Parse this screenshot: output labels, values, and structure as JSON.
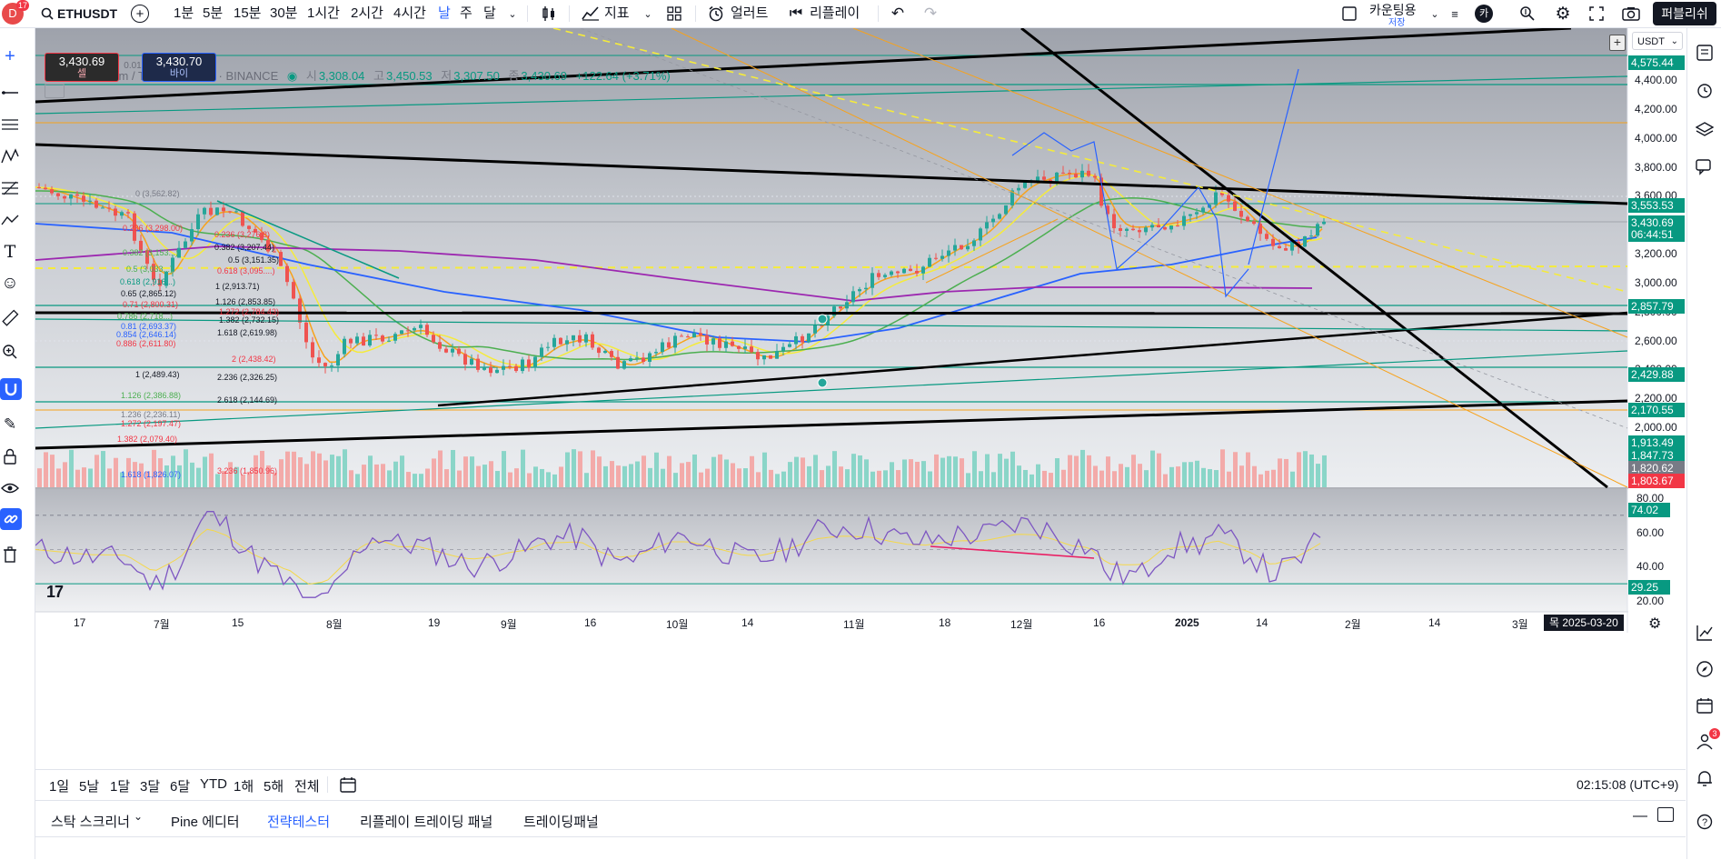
{
  "topbar": {
    "badge": "17",
    "symbol": "ETHUSDT",
    "intervals": [
      "1분",
      "5분",
      "15분",
      "30분",
      "1시간",
      "2시간",
      "4시간",
      "날",
      "주",
      "달"
    ],
    "active_interval": "날",
    "indicators_label": "지표",
    "alert_label": "얼러트",
    "replay_label": "리플레이",
    "layout_name": "카운팅용",
    "layout_status": "저장",
    "avatar_letter": "카",
    "publish_label": "퍼블리쉬"
  },
  "legend": {
    "title": "Ethereum / TetherUS · 1날 · BINANCE",
    "o_label": "시",
    "o": "3,308.04",
    "h_label": "고",
    "h": "3,450.53",
    "l_label": "저",
    "l": "3,307.50",
    "c_label": "종",
    "c": "3,430.69",
    "change": "+122.64 (+3.71%)",
    "sell_price": "3,430.69",
    "sell_label": "셀",
    "buy_price": "3,430.70",
    "buy_label": "바이",
    "spread": "0.01",
    "currency": "USDT"
  },
  "price_axis": {
    "ticks": [
      "4,400.00",
      "4,200.00",
      "4,000.00",
      "3,800.00",
      "3,600.00",
      "3,400.00",
      "3,200.00",
      "3,000.00",
      "2,800.00",
      "2,600.00",
      "2,400.00",
      "2,200.00",
      "2,000.00"
    ],
    "labels": [
      {
        "text": "4,575.44",
        "color": "#089981"
      },
      {
        "text": "3,553.53",
        "color": "#089981"
      },
      {
        "text": "3,430.69",
        "color": "#089981"
      },
      {
        "text": "06:44:51",
        "color": "#089981"
      },
      {
        "text": "2,857.79",
        "color": "#089981"
      },
      {
        "text": "2,429.88",
        "color": "#089981"
      },
      {
        "text": "2,170.55",
        "color": "#089981"
      },
      {
        "text": "1,913.49",
        "color": "#089981"
      },
      {
        "text": "1,847.73",
        "color": "#089981"
      },
      {
        "text": "1,820.62",
        "color": "#787b86"
      },
      {
        "text": "1,803.67",
        "color": "#f23645"
      }
    ]
  },
  "rsi_axis": {
    "ticks": [
      "80.00",
      "60.00",
      "40.00",
      "20.00"
    ],
    "value": "74.02",
    "low": "29.25"
  },
  "fib_left": [
    "0 (3,562.82)",
    "0.236 (3,298.00)",
    "0.382 (3,153...)",
    "0.5 (3,033...)",
    "0.618 (2,916...)",
    "0.65 (2,865.12)",
    "0.71 (2,800.31)",
    "0.786 (2,718...)",
    "0.81 (2,693.37)",
    "0.854 (2,646.14)",
    "0.886 (2,611.80)",
    "1 (2,489.43)",
    "1.126 (2,386.88)",
    "1.236 (2,236.11)",
    "1.272 (2,197.47)",
    "1.382 (2,079.40)",
    "1.618 (1,826.07)"
  ],
  "fib_right": [
    "0.236 (3,276.8)",
    "0.382 (3,207.44)",
    "0.5 (3,151.35)",
    "0.618 (3,095....)",
    "1 (2,913.71)",
    "1.126 (2,853.85)",
    "1.272 (2,784.43)",
    "1.382 (2,732.15)",
    "1.618 (2,619.98)",
    "2 (2,438.42)",
    "2.236 (2,326.25)",
    "2.618 (2,144.69)",
    "3.236 (1,850.96)"
  ],
  "time_axis": [
    "17",
    "7월",
    "15",
    "8월",
    "19",
    "9월",
    "16",
    "10월",
    "14",
    "11월",
    "18",
    "12월",
    "16",
    "2025",
    "14",
    "2월",
    "14",
    "3월"
  ],
  "crosshair_date": "목 2025-03-20",
  "ranges": [
    "1일",
    "5날",
    "1달",
    "3달",
    "6달",
    "YTD",
    "1해",
    "5해",
    "전체"
  ],
  "clock": "02:15:08 (UTC+9)",
  "panel_tabs": [
    "스탁 스크리너",
    "Pine 에디터",
    "전략테스터",
    "리플레이 트레이딩 패널",
    "트레이딩패널"
  ],
  "active_panel_tab": "전략테스터",
  "rightbar_badge": "3",
  "tv_logo": "17"
}
